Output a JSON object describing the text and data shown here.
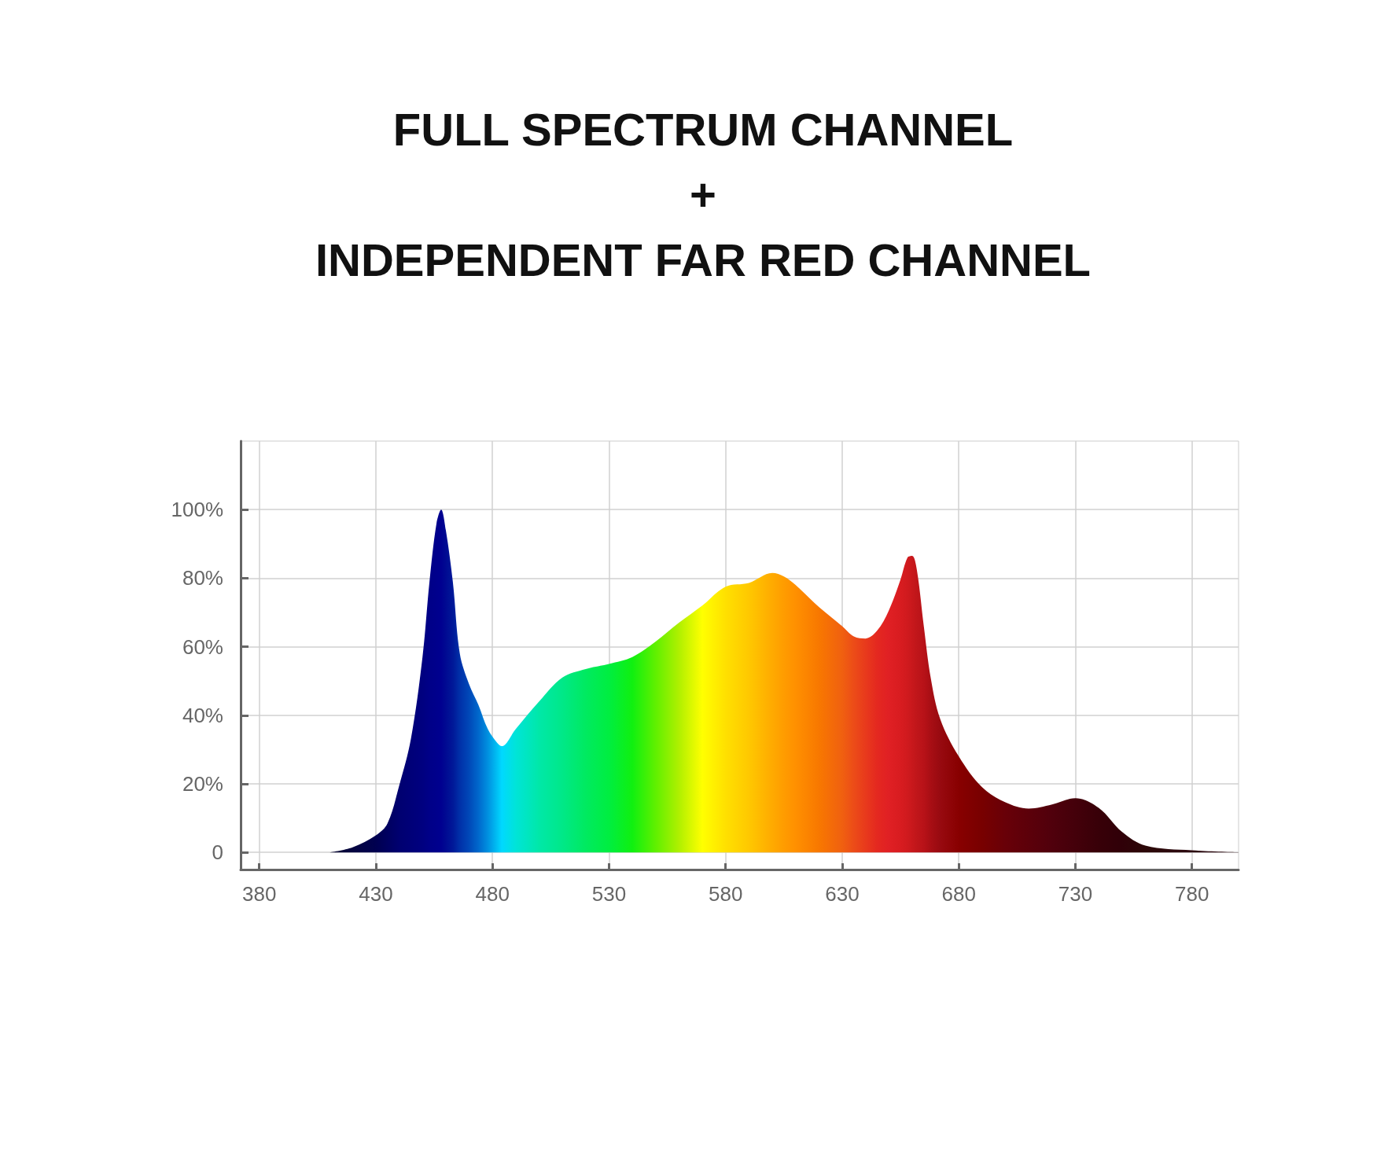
{
  "chart_data": {
    "type": "area",
    "title": "FULL SPECTRUM CHANNEL\n+\nINDEPENDENT FAR RED CHANNEL",
    "x": [
      410,
      420,
      430,
      435,
      440,
      445,
      450,
      453,
      456,
      458,
      460,
      463,
      466,
      470,
      474,
      478,
      482,
      484,
      490,
      500,
      510,
      520,
      530,
      540,
      550,
      560,
      570,
      580,
      590,
      600,
      605,
      610,
      620,
      630,
      635,
      640,
      645,
      650,
      655,
      658,
      660,
      662,
      665,
      668,
      672,
      680,
      690,
      700,
      710,
      720,
      730,
      740,
      750,
      760,
      780,
      800
    ],
    "series": [
      {
        "values": [
          0,
          1.5,
          5,
          8.5,
          19.5,
          33,
          57,
          79,
          96,
          100,
          94,
          79,
          58,
          49,
          43,
          36,
          32,
          31,
          36,
          44,
          51,
          53.5,
          55,
          57,
          61.5,
          67,
          72,
          77.5,
          78.6,
          81.5,
          80.5,
          78,
          71.6,
          66,
          63,
          62.4,
          64.7,
          70.6,
          79.6,
          86,
          86.5,
          82.5,
          66,
          50.8,
          39,
          28,
          19,
          14.6,
          12.8,
          14,
          15.8,
          13,
          6,
          2,
          0.6,
          0
        ],
        "colors": [
          "#0a0a30",
          "#050540",
          "#000050",
          "#000060",
          "#000070",
          "#000078",
          "#000080",
          "#000088",
          "#00008c",
          "#000090",
          "#000a92",
          "#001898",
          "#0030a8",
          "#0048b8",
          "#0068cc",
          "#0090e0",
          "#00c0f4",
          "#00d8ff",
          "#00e4d8",
          "#00e8a8",
          "#00e888",
          "#00ea60",
          "#00ee40",
          "#10f010",
          "#60f000",
          "#b0f000",
          "#ffff00",
          "#ffe000",
          "#ffc800",
          "#ffaa00",
          "#ff9c00",
          "#ff9000",
          "#f87800",
          "#f06010",
          "#ec4c18",
          "#e83a1c",
          "#e42820",
          "#e02024",
          "#d81c20",
          "#d01a1e",
          "#c8181c",
          "#c0161a",
          "#b81218",
          "#a80e14",
          "#980a10",
          "#880000",
          "#780000",
          "#680008",
          "#5c000a",
          "#50000c",
          "#44000a",
          "#380008",
          "#300008",
          "#2c0808",
          "#2c0a10",
          "#2c0a10"
        ]
      }
    ],
    "xlim": [
      372,
      800
    ],
    "xticks": [
      380,
      430,
      480,
      530,
      580,
      630,
      680,
      730,
      780
    ],
    "ylim": [
      -5,
      120
    ],
    "yticks": [
      {
        "value": 0,
        "label": "0"
      },
      {
        "value": 20,
        "label": "20%"
      },
      {
        "value": 40,
        "label": "40%"
      },
      {
        "value": 60,
        "label": "60%"
      },
      {
        "value": 80,
        "label": "80%"
      },
      {
        "value": 100,
        "label": "100%"
      }
    ],
    "grid": true
  }
}
